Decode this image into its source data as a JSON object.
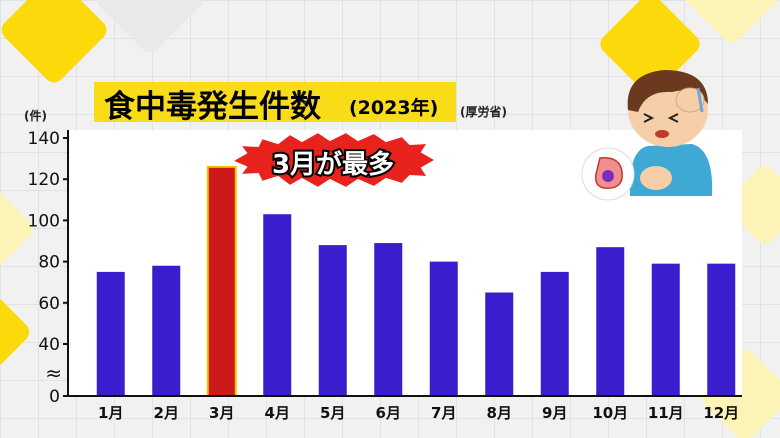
{
  "title": "食中毒発生件数",
  "title_year": "(2023年)",
  "source": "(厚労省)",
  "y_unit": "(件)",
  "callout": "3月が最多",
  "axis_break": "≈",
  "colors": {
    "bar": "#3a1dcc",
    "highlight": "#cc1a1a",
    "title_bg": "#f9dc18",
    "callout_bg": "#e8231e"
  },
  "icon": "sick-boy-stomachache-icon",
  "chart_data": {
    "type": "bar",
    "title": "食中毒発生件数(2023年)",
    "xlabel": "",
    "ylabel": "(件)",
    "categories": [
      "1月",
      "2月",
      "3月",
      "4月",
      "5月",
      "6月",
      "7月",
      "8月",
      "9月",
      "10月",
      "11月",
      "12月"
    ],
    "values": [
      75,
      78,
      126,
      103,
      88,
      89,
      80,
      65,
      75,
      87,
      79,
      79
    ],
    "highlight_index": 2,
    "yticks": [
      0,
      40,
      60,
      80,
      100,
      120,
      140
    ],
    "ylim": [
      0,
      140
    ],
    "axis_break": "between 0 and 40",
    "grid": false,
    "legend": "none"
  }
}
